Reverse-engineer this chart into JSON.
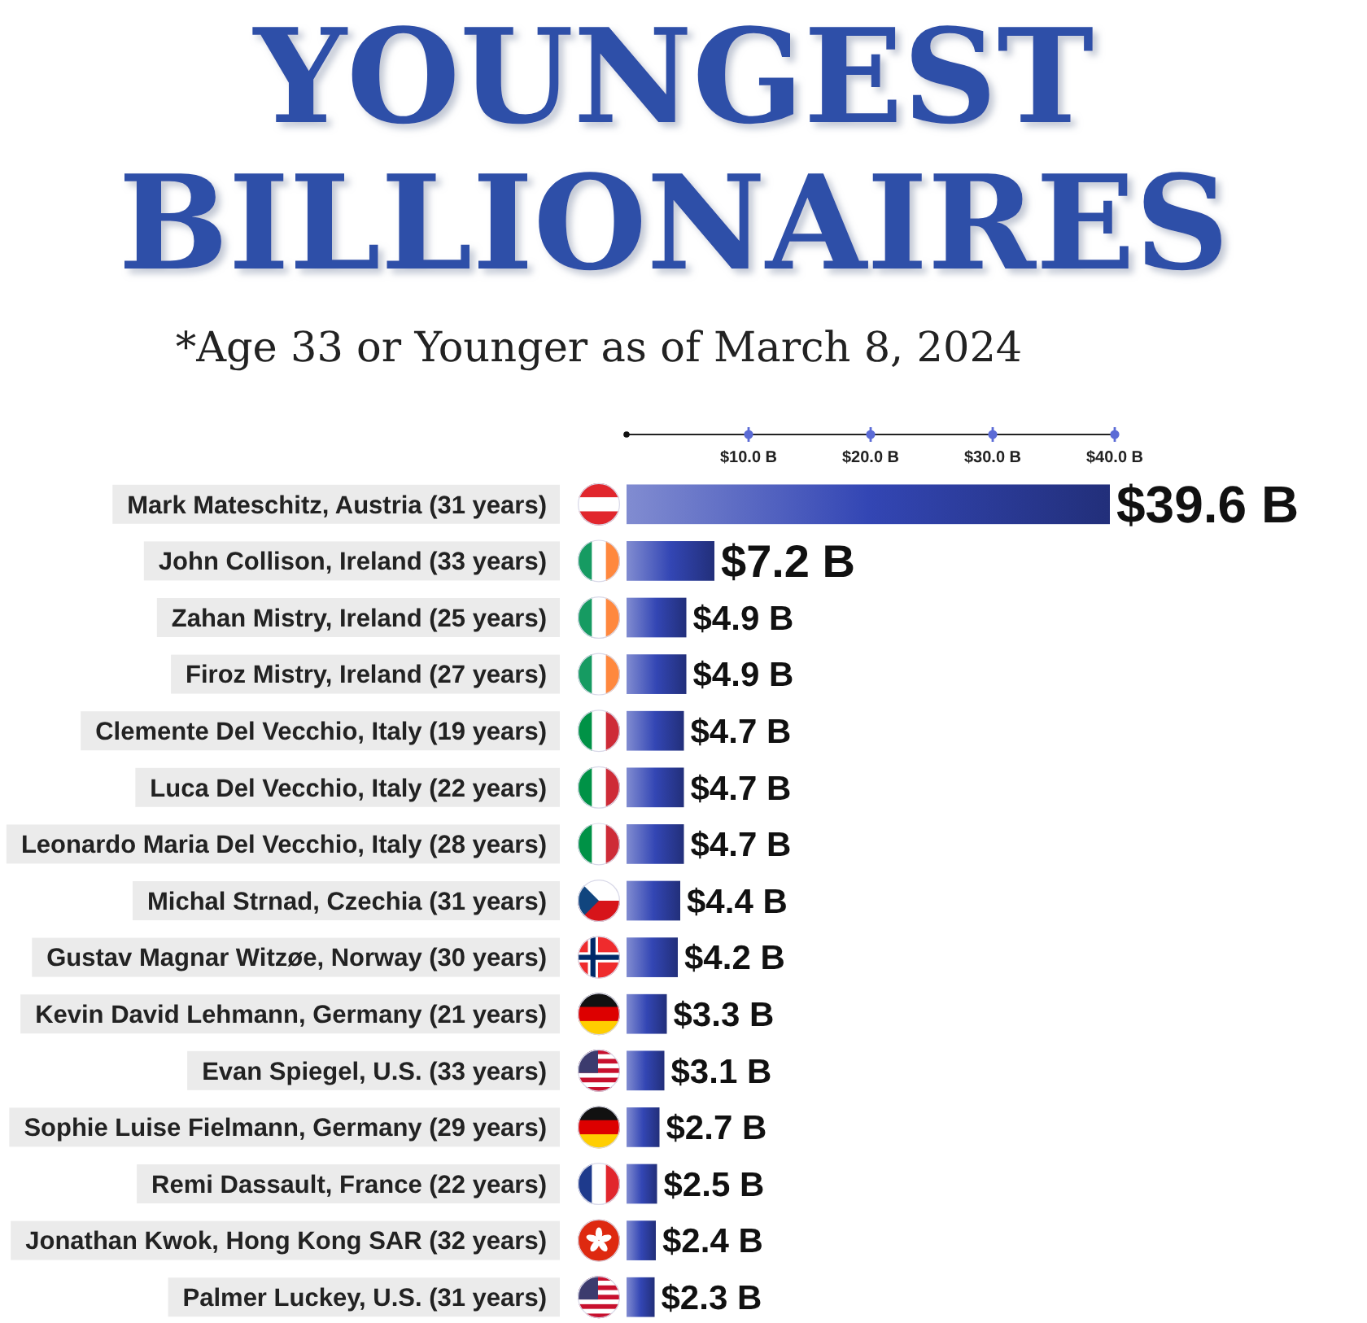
{
  "chart_data": {
    "type": "bar",
    "orientation": "horizontal",
    "title": "YOUNGEST BILLIONAIRES",
    "subtitle": "*Age 33 or Younger as of March 8, 2024",
    "categories": [
      "Mark Mateschitz, Austria (31 years)",
      "John Collison, Ireland (33 years)",
      "Zahan Mistry, Ireland (25 years)",
      "Firoz Mistry, Ireland (27 years)",
      "Clemente Del Vecchio, Italy (19 years)",
      "Luca Del Vecchio, Italy (22 years)",
      "Leonardo Maria Del Vecchio, Italy (28 years)",
      "Michal Strnad, Czechia (31 years)",
      "Gustav Magnar Witzøe, Norway (30 years)",
      "Kevin David Lehmann, Germany (21 years)",
      "Evan Spiegel, U.S. (33 years)",
      "Sophie Luise Fielmann, Germany (29 years)",
      "Remi Dassault, France (22 years)",
      "Jonathan Kwok, Hong Kong SAR (32 years)",
      "Palmer Luckey, U.S. (31 years)"
    ],
    "values": [
      39.6,
      7.2,
      4.9,
      4.9,
      4.7,
      4.7,
      4.7,
      4.4,
      4.2,
      3.3,
      3.1,
      2.7,
      2.5,
      2.4,
      2.3
    ],
    "value_labels": [
      "$39.6 B",
      "$7.2 B",
      "$4.9 B",
      "$4.9 B",
      "$4.7 B",
      "$4.7 B",
      "$4.7 B",
      "$4.4 B",
      "$4.2 B",
      "$3.3 B",
      "$3.1 B",
      "$2.7 B",
      "$2.5 B",
      "$2.4 B",
      "$2.3 B"
    ],
    "color": "#3346b4",
    "xlim": [
      0,
      40
    ],
    "xticks": [
      {
        "value": 10,
        "label": "$10.0 B"
      },
      {
        "value": 20,
        "label": "$20.0 B"
      },
      {
        "value": 30,
        "label": "$30.0 B"
      },
      {
        "value": 40,
        "label": "$40.0 B"
      }
    ]
  }
}
